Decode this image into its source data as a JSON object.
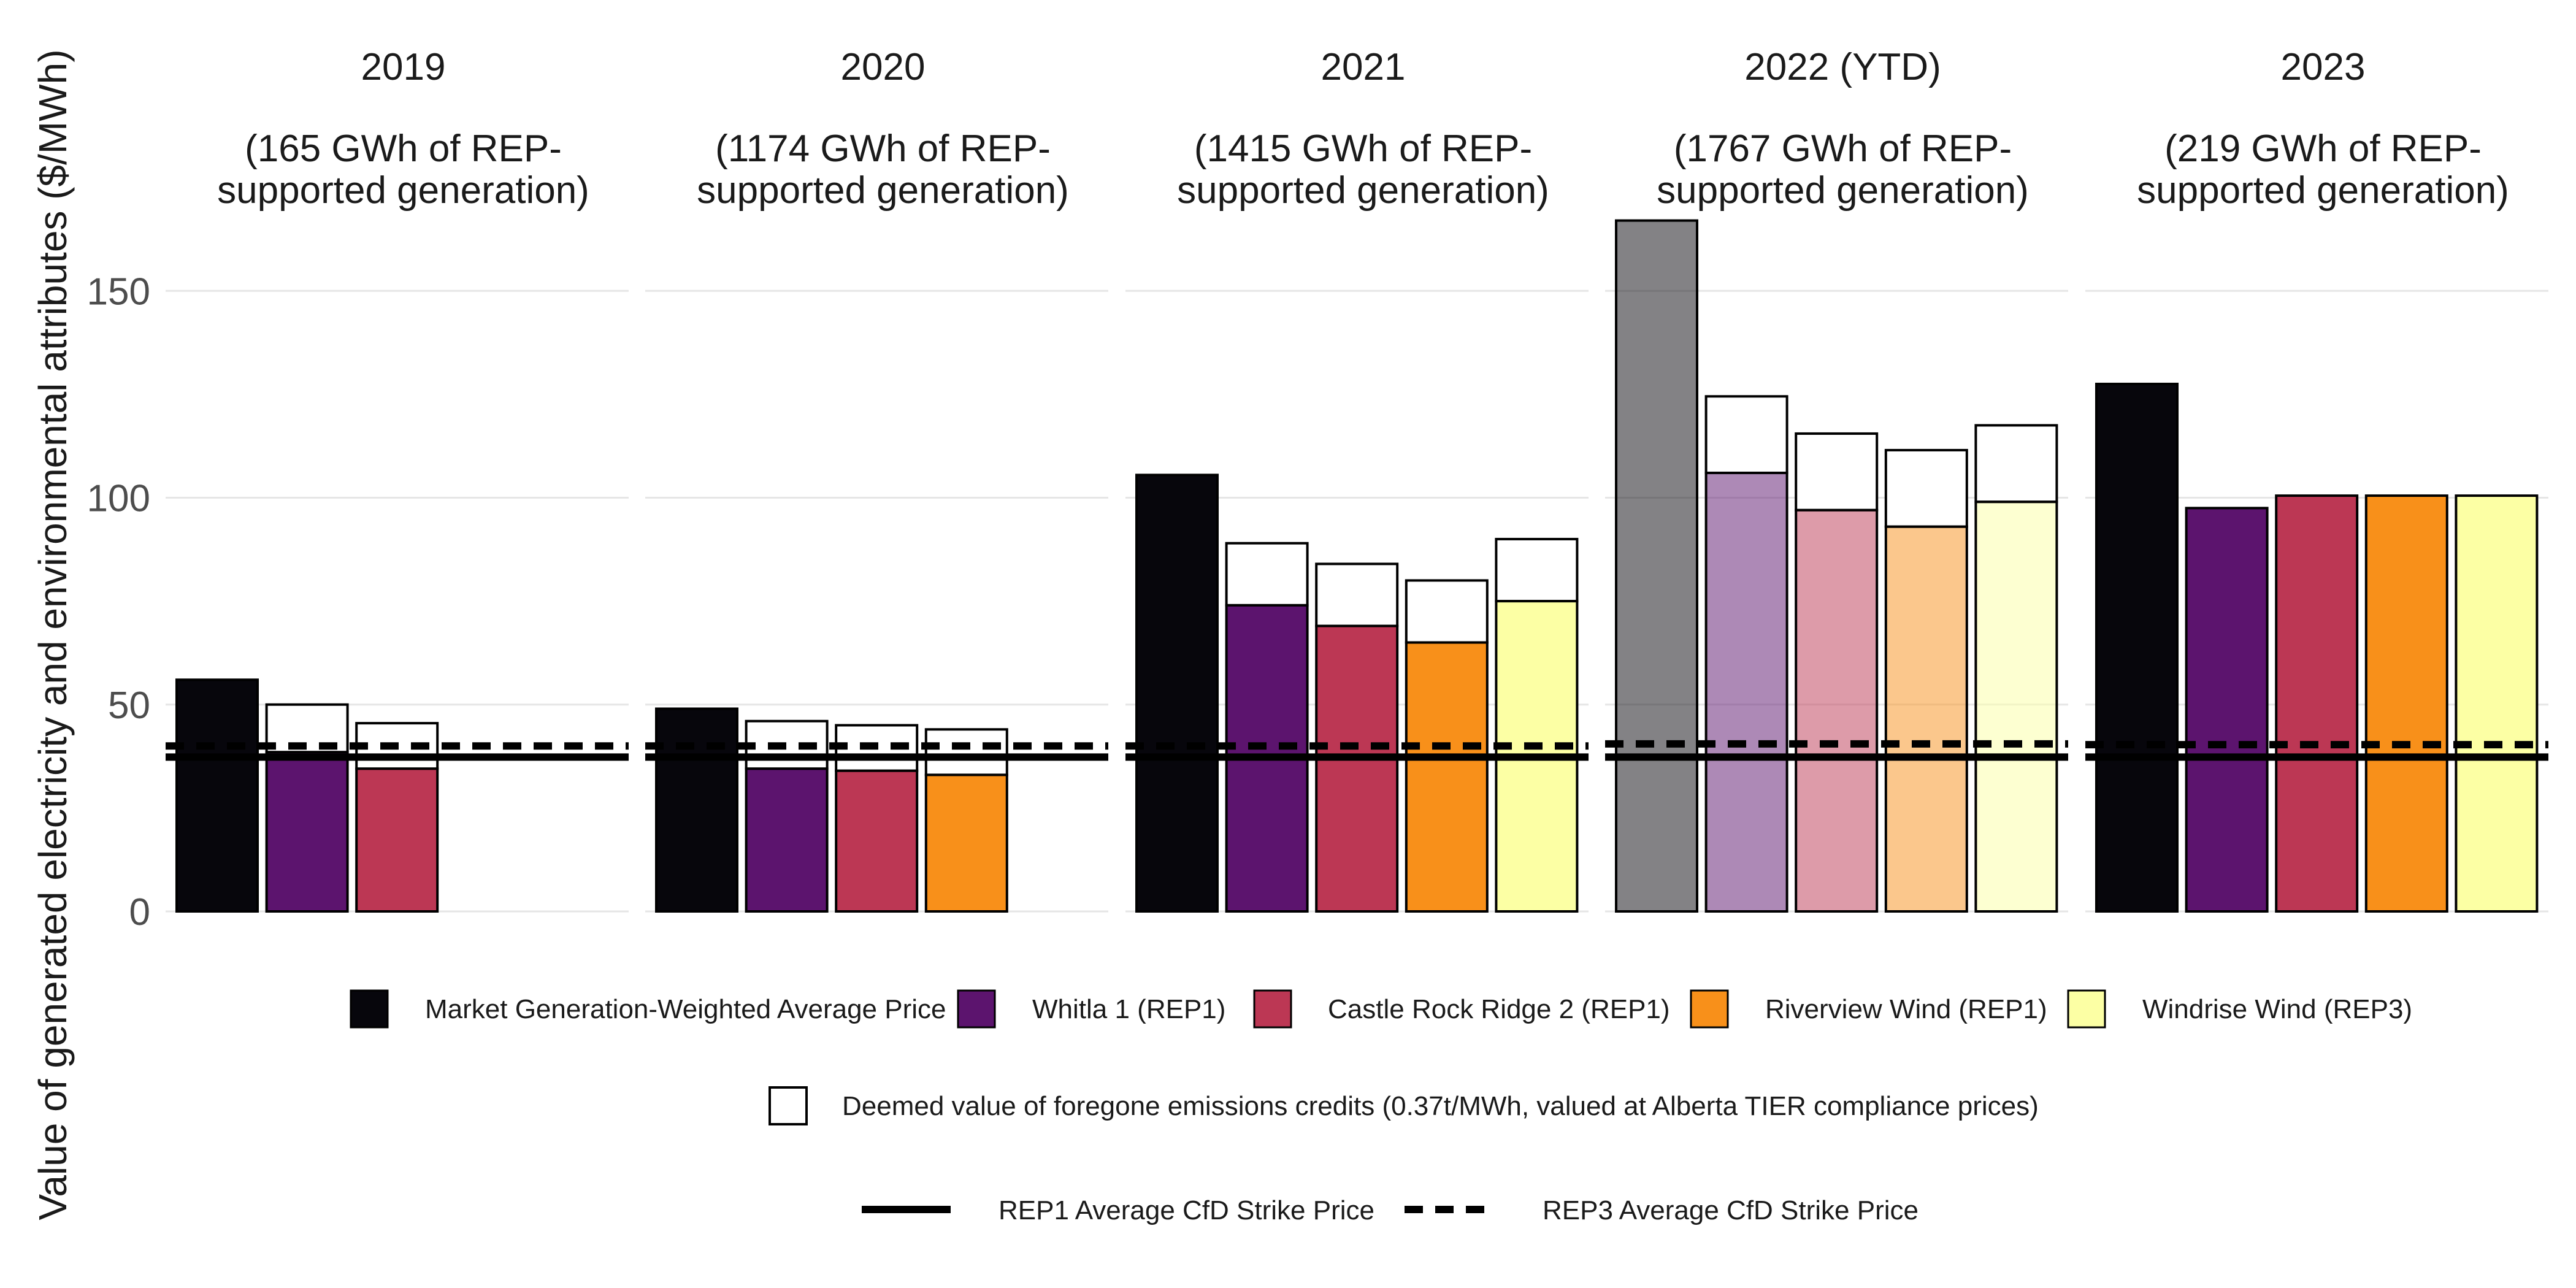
{
  "chart_data": {
    "type": "bar",
    "ylabel": "Value of generated electricity and environmental attributes ($/MWh)",
    "ylim": [
      0,
      160
    ],
    "yticks": [
      0,
      50,
      100,
      150
    ],
    "grid": true,
    "legend_position": "bottom",
    "panels": [
      {
        "year": "2019",
        "subtitle": [
          "(165 GWh of REP-",
          "supported generation)"
        ],
        "bars": [
          {
            "series": "market",
            "value": 56,
            "credit": 0,
            "faded": false
          },
          {
            "series": "whitla",
            "value": 38.5,
            "credit": 11.5,
            "faded": false
          },
          {
            "series": "castle",
            "value": 34.5,
            "credit": 11,
            "faded": false
          }
        ],
        "rep1_strike": 37.3,
        "rep3_strike": 40.0
      },
      {
        "year": "2020",
        "subtitle": [
          "(1174 GWh of REP-",
          "supported generation)"
        ],
        "bars": [
          {
            "series": "market",
            "value": 49,
            "credit": 0,
            "faded": false
          },
          {
            "series": "whitla",
            "value": 34.5,
            "credit": 11.5,
            "faded": false
          },
          {
            "series": "castle",
            "value": 34,
            "credit": 11,
            "faded": false
          },
          {
            "series": "riverview",
            "value": 33,
            "credit": 11,
            "faded": false
          }
        ],
        "rep1_strike": 37.3,
        "rep3_strike": 40.0
      },
      {
        "year": "2021",
        "subtitle": [
          "(1415 GWh of REP-",
          "supported generation)"
        ],
        "bars": [
          {
            "series": "market",
            "value": 105.5,
            "credit": 0,
            "faded": false
          },
          {
            "series": "whitla",
            "value": 74,
            "credit": 15,
            "faded": false
          },
          {
            "series": "castle",
            "value": 69,
            "credit": 15,
            "faded": false
          },
          {
            "series": "riverview",
            "value": 65,
            "credit": 15,
            "faded": false
          },
          {
            "series": "windrise",
            "value": 75,
            "credit": 15,
            "faded": false
          }
        ],
        "rep1_strike": 37.3,
        "rep3_strike": 40.0
      },
      {
        "year": "2022 (YTD)",
        "subtitle": [
          "(1767 GWh of REP-",
          "supported generation)"
        ],
        "bars": [
          {
            "series": "market",
            "value": 167,
            "credit": 0,
            "faded": true
          },
          {
            "series": "whitla",
            "value": 106,
            "credit": 18.5,
            "faded": true
          },
          {
            "series": "castle",
            "value": 97,
            "credit": 18.5,
            "faded": true
          },
          {
            "series": "riverview",
            "value": 93,
            "credit": 18.5,
            "faded": true
          },
          {
            "series": "windrise",
            "value": 99,
            "credit": 18.5,
            "faded": true
          }
        ],
        "rep1_strike": 37.3,
        "rep3_strike": 40.5
      },
      {
        "year": "2023",
        "subtitle": [
          "(219 GWh of REP-",
          "supported generation)"
        ],
        "bars": [
          {
            "series": "market",
            "value": 127.5,
            "credit": 0,
            "faded": false
          },
          {
            "series": "whitla",
            "value": 97.5,
            "credit": 0,
            "faded": false
          },
          {
            "series": "castle",
            "value": 100.5,
            "credit": 0,
            "faded": false
          },
          {
            "series": "riverview",
            "value": 100.5,
            "credit": 0,
            "faded": false
          },
          {
            "series": "windrise",
            "value": 100.5,
            "credit": 0,
            "faded": false
          }
        ],
        "rep1_strike": 37.3,
        "rep3_strike": 40.3
      }
    ],
    "series": [
      {
        "key": "market",
        "name": "Market Generation-Weighted Average Price",
        "color": "#07060c"
      },
      {
        "key": "whitla",
        "name": "Whitla 1 (REP1)",
        "color": "#5c146e"
      },
      {
        "key": "castle",
        "name": "Castle Rock Ridge 2 (REP1)",
        "color": "#bc3754"
      },
      {
        "key": "riverview",
        "name": "Riverview Wind (REP1)",
        "color": "#f8901a"
      },
      {
        "key": "windrise",
        "name": "Windrise Wind (REP3)",
        "color": "#fcffa4"
      }
    ],
    "credit_legend": "Deemed value of foregone emissions credits (0.37t/MWh, valued at Alberta TIER compliance prices)",
    "strike_legend": {
      "rep1": "REP1 Average CfD Strike Price",
      "rep3": "REP3 Average CfD Strike Price"
    }
  }
}
